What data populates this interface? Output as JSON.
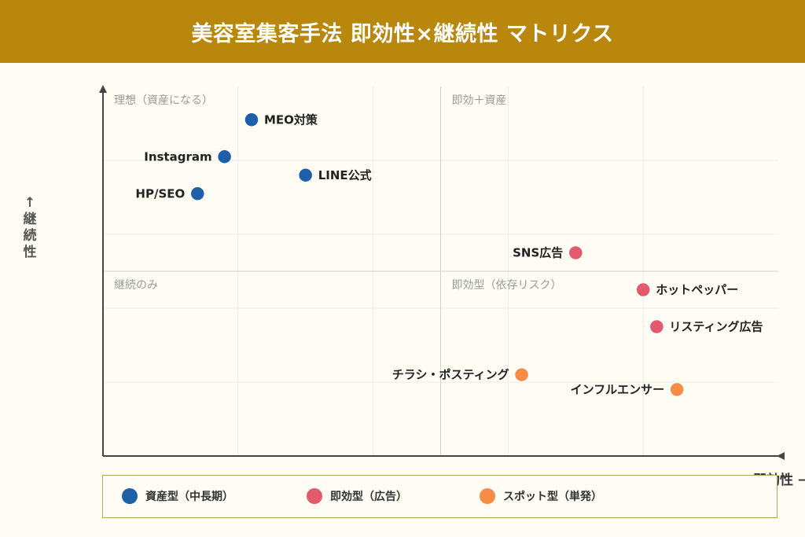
{
  "title": "美容室集客手法 即効性×継続性 マトリクス",
  "chart_data": {
    "type": "scatter",
    "title": "美容室集客手法 即効性×継続性 マトリクス",
    "xlabel": "即効性 →",
    "ylabel": "↑継続性",
    "ylabel_chars": [
      "↑",
      "継",
      "続",
      "性"
    ],
    "xlim": [
      0,
      10
    ],
    "ylim": [
      0,
      10
    ],
    "grid": true,
    "legend_position": "bottom",
    "quadrants": [
      {
        "label": "理想（資産になる）",
        "position": "top-left"
      },
      {
        "label": "即効＋資産",
        "position": "top-right"
      },
      {
        "label": "継続のみ",
        "position": "bottom-left"
      },
      {
        "label": "即効型（依存リスク）",
        "position": "bottom-right"
      }
    ],
    "categories": [
      {
        "key": "asset",
        "label": "資産型（中長期）",
        "color": "#1f5faa"
      },
      {
        "key": "instant",
        "label": "即効型（広告）",
        "color": "#e35a6a"
      },
      {
        "key": "spot",
        "label": "スポット型（単発）",
        "color": "#f78c45"
      }
    ],
    "points": [
      {
        "label": "MEO対策",
        "x": 2.2,
        "y": 9.1,
        "category": "asset",
        "label_side": "right"
      },
      {
        "label": "Instagram",
        "x": 1.8,
        "y": 8.1,
        "category": "asset",
        "label_side": "left"
      },
      {
        "label": "LINE公式",
        "x": 3.0,
        "y": 7.6,
        "category": "asset",
        "label_side": "right"
      },
      {
        "label": "HP/SEO",
        "x": 1.4,
        "y": 7.1,
        "category": "asset",
        "label_side": "left"
      },
      {
        "label": "SNS広告",
        "x": 7.0,
        "y": 5.5,
        "category": "instant",
        "label_side": "left"
      },
      {
        "label": "ホットペッパー",
        "x": 8.0,
        "y": 4.5,
        "category": "instant",
        "label_side": "right"
      },
      {
        "label": "リスティング広告",
        "x": 8.2,
        "y": 3.5,
        "category": "instant",
        "label_side": "right"
      },
      {
        "label": "チラシ・ポスティング",
        "x": 6.2,
        "y": 2.2,
        "category": "spot",
        "label_side": "left"
      },
      {
        "label": "インフルエンサー",
        "x": 8.5,
        "y": 1.8,
        "category": "spot",
        "label_side": "left"
      }
    ]
  }
}
